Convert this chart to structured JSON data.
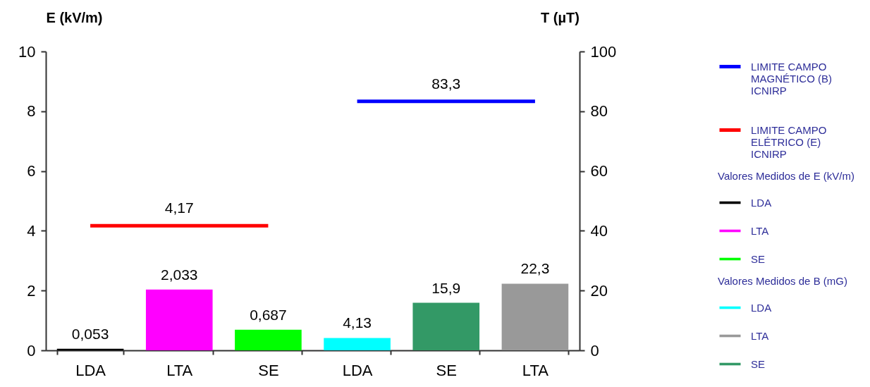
{
  "chart_data": {
    "type": "bar",
    "categories": [
      "LDA",
      "LTA",
      "SE",
      "LDA",
      "SE",
      "LTA"
    ],
    "ylabel": "E (kV/m)",
    "y2label": "T (µT)",
    "ylim": [
      0,
      10
    ],
    "yticks": [
      0,
      2,
      4,
      6,
      8,
      10
    ],
    "y2lim": [
      0,
      100
    ],
    "y2ticks": [
      0,
      20,
      40,
      60,
      80,
      100
    ],
    "grid": false,
    "legend": "right",
    "annotations": [
      "Valores Medidos de E (kV/m)",
      "Valores Medidos de B (mG)"
    ],
    "series": [
      {
        "name": "LIMITE CAMPO MAGNÉTICO (B) ICNIRP",
        "type": "line",
        "axis": "y2",
        "color": "#0000ff",
        "values": [
          null,
          null,
          null,
          83.3,
          83.3,
          83.3
        ],
        "value_labels": [
          null,
          null,
          null,
          null,
          "83,3",
          null
        ]
      },
      {
        "name": "LIMITE CAMPO ELÉTRICO (E) ICNIRP",
        "type": "line",
        "axis": "y",
        "color": "#ff0000",
        "values": [
          4.17,
          4.17,
          4.17,
          null,
          null,
          null
        ],
        "value_labels": [
          null,
          "4,17",
          null,
          null,
          null,
          null
        ]
      },
      {
        "name": "LDA",
        "axis": "y",
        "color": "#000000",
        "values": [
          0.053,
          null,
          null,
          null,
          null,
          null
        ],
        "value_labels": [
          "0,053",
          null,
          null,
          null,
          null,
          null
        ]
      },
      {
        "name": "LTA",
        "axis": "y",
        "color": "#ff00ff",
        "values": [
          null,
          2.033,
          null,
          null,
          null,
          null
        ],
        "value_labels": [
          null,
          "2,033",
          null,
          null,
          null,
          null
        ]
      },
      {
        "name": "SE",
        "axis": "y",
        "color": "#00ff00",
        "values": [
          null,
          null,
          0.687,
          null,
          null,
          null
        ],
        "value_labels": [
          null,
          null,
          "0,687",
          null,
          null,
          null
        ]
      },
      {
        "name": "LDA",
        "axis": "y2",
        "color": "#00ffff",
        "values": [
          null,
          null,
          null,
          4.13,
          null,
          null
        ],
        "value_labels": [
          null,
          null,
          null,
          "4,13",
          null,
          null
        ]
      },
      {
        "name": "LTA",
        "axis": "y2",
        "color": "#999999",
        "values": [
          null,
          null,
          null,
          null,
          null,
          22.3
        ],
        "value_labels": [
          null,
          null,
          null,
          null,
          null,
          "22,3"
        ]
      },
      {
        "name": "SE",
        "axis": "y2",
        "color": "#339966",
        "values": [
          null,
          null,
          null,
          null,
          15.9,
          null
        ],
        "value_labels": [
          null,
          null,
          null,
          null,
          "15,9",
          null
        ]
      }
    ]
  }
}
